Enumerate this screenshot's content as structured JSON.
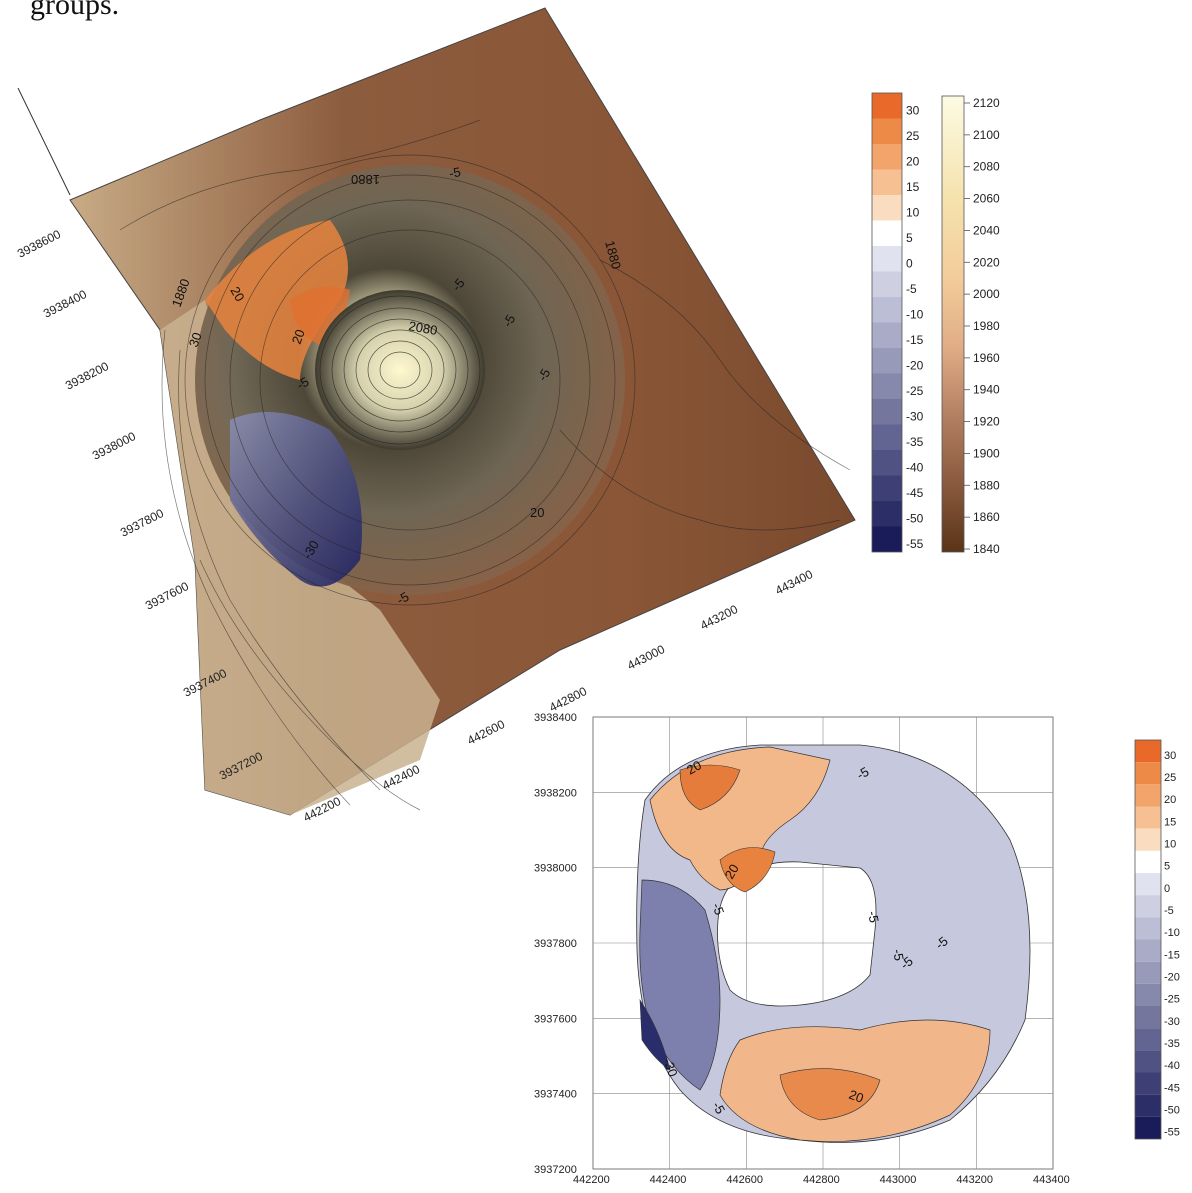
{
  "caption": "groups.",
  "colors": {
    "terrain_low": "#6b3e22",
    "terrain_mid": "#a0694a",
    "terrain_high": "#f5f0d8",
    "anomaly_pos": "#e8722c",
    "anomaly_neg": "#1d2060",
    "zero": "#ffffff"
  },
  "surface_map": {
    "northing_ticks": [
      "3938600",
      "3938400",
      "3938200",
      "3938000",
      "3937800",
      "3937600",
      "3937400",
      "3937200"
    ],
    "easting_ticks": [
      "442200",
      "442400",
      "442600",
      "442800",
      "443000",
      "443200",
      "443400"
    ],
    "contour_labels": [
      "1880",
      "1880",
      "1880",
      "20",
      "20",
      "30",
      "-5",
      "2080",
      "-5",
      "-5",
      "-5",
      "20",
      "-30",
      "-5",
      "-5"
    ]
  },
  "anomaly_legend": {
    "labels": [
      "30",
      "25",
      "20",
      "15",
      "10",
      "5",
      "0",
      "-5",
      "-10",
      "-15",
      "-20",
      "-25",
      "-30",
      "-35",
      "-40",
      "-45",
      "-50",
      "-55"
    ]
  },
  "elevation_legend": {
    "labels": [
      "2120",
      "2100",
      "2080",
      "2060",
      "2040",
      "2020",
      "2000",
      "1980",
      "1960",
      "1940",
      "1920",
      "1900",
      "1880",
      "1860",
      "1840"
    ]
  },
  "plan_map": {
    "y_ticks": [
      "3938400",
      "3938200",
      "3938000",
      "3937800",
      "3937600",
      "3937400",
      "3937200"
    ],
    "x_ticks": [
      "442200",
      "442400",
      "442600",
      "442800",
      "443000",
      "443200",
      "443400"
    ],
    "contour_labels": [
      "20",
      "-5",
      "20",
      "-5",
      "-5",
      "-5",
      "-5",
      "-5",
      "-30",
      "20",
      "-5"
    ]
  },
  "plan_legend": {
    "labels": [
      "30",
      "25",
      "20",
      "15",
      "10",
      "5",
      "0",
      "-5",
      "-10",
      "-15",
      "-20",
      "-25",
      "-30",
      "-35",
      "-40",
      "-45",
      "-50",
      "-55"
    ]
  }
}
